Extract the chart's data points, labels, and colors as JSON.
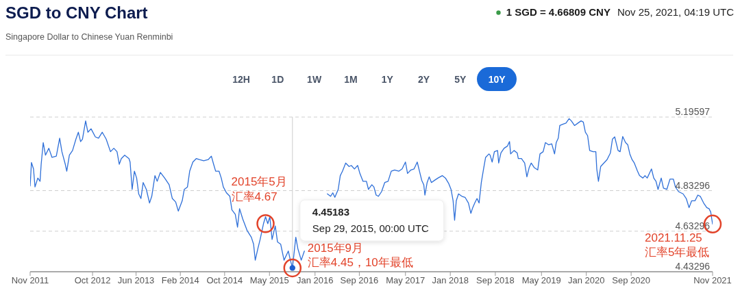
{
  "chart_data": {
    "type": "line",
    "title": "SGD to CNY Chart",
    "subtitle": "Singapore Dollar to Chinese Yuan Renminbi",
    "annotations": [
      "1 SGD = 4.66809 CNY",
      "Nov 25, 2021, 04:19 UTC",
      "12H",
      "1D",
      "1W",
      "1M",
      "1Y",
      "2Y",
      "5Y",
      "10Y",
      {
        "text": "2015年5月汇率4.67",
        "x": "2015-05-08",
        "y": 4.67
      },
      {
        "text": "2015年9月汇率4.45，10年最低",
        "x": "2015-09-29",
        "y": 4.45183
      },
      {
        "text": "2021.11.25汇率5年最低",
        "x": "2021-11-25",
        "y": 4.66809
      }
    ],
    "xlim": [
      "2011-11-25",
      "2021-11-25"
    ],
    "xticks": [
      {
        "value": "2011-11-25",
        "label": "Nov 2011"
      },
      {
        "value": "2012-10-24",
        "label": "Oct 2012"
      },
      {
        "value": "2013-06-14",
        "label": "Jun 2013"
      },
      {
        "value": "2014-02-06",
        "label": "Feb 2014"
      },
      {
        "value": "2014-10-01",
        "label": "Oct 2014"
      },
      {
        "value": "2015-05-29",
        "label": "May 2015"
      },
      {
        "value": "2016-01-28",
        "label": "Jan 2016"
      },
      {
        "value": "2016-09-21",
        "label": "Sep 2016"
      },
      {
        "value": "2017-05-26",
        "label": "May 2017"
      },
      {
        "value": "2018-01-21",
        "label": "Jan 2018"
      },
      {
        "value": "2018-09-19",
        "label": "Sep 2018"
      },
      {
        "value": "2019-05-24",
        "label": "May 2019"
      },
      {
        "value": "2020-01-19",
        "label": "Jan 2020"
      },
      {
        "value": "2020-09-15",
        "label": "Sep 2020"
      },
      {
        "value": "2021-11-25",
        "label": "Nov 2021"
      }
    ],
    "ylim": [
      4.43296,
      5.19597
    ],
    "yticks": [
      4.43296,
      4.63296,
      4.83296,
      5.19597
    ],
    "grid": "y",
    "ref_lines": [
      {
        "axis": "x",
        "value": "2015-09-29",
        "label": "4.45183\nSep 29, 2015, 00:00 UTC",
        "color": "#cccccc"
      }
    ],
    "series": [
      {
        "color": "#2e6fd8",
        "x": [
          "2011-11-25",
          "2011-12-02",
          "2011-12-13",
          "2011-12-21",
          "2012-01-05",
          "2012-01-17",
          "2012-01-23",
          "2012-02-03",
          "2012-02-15",
          "2012-03-04",
          "2012-03-21",
          "2012-04-13",
          "2012-05-01",
          "2012-05-13",
          "2012-05-31",
          "2012-06-08",
          "2012-06-22",
          "2012-07-09",
          "2012-07-27",
          "2012-08-09",
          "2012-08-21",
          "2012-08-31",
          "2012-09-17",
          "2012-09-29",
          "2012-10-16",
          "2012-11-08",
          "2012-11-25",
          "2012-12-15",
          "2013-01-05",
          "2013-01-28",
          "2013-02-15",
          "2013-03-04",
          "2013-03-16",
          "2013-03-27",
          "2013-04-14",
          "2013-05-07",
          "2013-05-13",
          "2013-05-24",
          "2013-06-05",
          "2013-06-17",
          "2013-06-28",
          "2013-07-10",
          "2013-07-22",
          "2013-08-08",
          "2013-08-25",
          "2013-09-06",
          "2013-09-23",
          "2013-10-05",
          "2013-10-22",
          "2013-11-14",
          "2013-12-08",
          "2013-12-25",
          "2014-01-12",
          "2014-01-26",
          "2014-02-16",
          "2014-02-27",
          "2014-03-16",
          "2014-03-28",
          "2014-04-14",
          "2014-05-02",
          "2014-05-19",
          "2014-06-11",
          "2014-07-05",
          "2014-07-22",
          "2014-08-03",
          "2014-08-14",
          "2014-09-01",
          "2014-09-13",
          "2014-09-24",
          "2014-10-11",
          "2014-10-29",
          "2014-11-09",
          "2014-11-27",
          "2014-12-09",
          "2014-12-20",
          "2015-01-06",
          "2015-01-29",
          "2015-02-21",
          "2015-03-05",
          "2015-03-14",
          "2015-03-28",
          "2015-04-09",
          "2015-04-27",
          "2015-05-08",
          "2015-05-20",
          "2015-05-31",
          "2015-06-12",
          "2015-06-29",
          "2015-07-11",
          "2015-07-28",
          "2015-08-15",
          "2015-09-07",
          "2015-09-18",
          "2015-09-29",
          "2015-10-17",
          "2015-10-28",
          "2015-11-15",
          "2015-12-02",
          "2016-01-31",
          "2016-04-03",
          "2016-04-20",
          "2016-05-02",
          "2016-05-13",
          "2016-05-31",
          "2016-06-11",
          "2016-06-23",
          "2016-07-10",
          "2016-07-28",
          "2016-08-09",
          "2016-08-26",
          "2016-09-12",
          "2016-09-24",
          "2016-10-11",
          "2016-10-29",
          "2016-11-09",
          "2016-11-27",
          "2016-12-08",
          "2016-12-20",
          "2017-01-01",
          "2017-01-18",
          "2017-02-04",
          "2017-02-22",
          "2017-03-11",
          "2017-03-29",
          "2017-04-21",
          "2017-05-08",
          "2017-05-26",
          "2017-06-06",
          "2017-06-24",
          "2017-07-11",
          "2017-07-28",
          "2017-08-09",
          "2017-08-21",
          "2017-09-01",
          "2017-09-07",
          "2017-09-19",
          "2017-09-30",
          "2017-10-12",
          "2017-10-29",
          "2017-11-16",
          "2017-12-09",
          "2017-12-26",
          "2018-01-13",
          "2018-01-25",
          "2018-02-05",
          "2018-02-13",
          "2018-02-22",
          "2018-03-06",
          "2018-03-24",
          "2018-04-10",
          "2018-04-28",
          "2018-05-11",
          "2018-05-21",
          "2018-06-01",
          "2018-06-13",
          "2018-06-24",
          "2018-07-06",
          "2018-07-18",
          "2018-07-29",
          "2018-08-16",
          "2018-08-22",
          "2018-09-02",
          "2018-09-14",
          "2018-10-01",
          "2018-10-07",
          "2018-10-19",
          "2018-11-05",
          "2018-11-23",
          "2018-12-04",
          "2018-12-10",
          "2018-12-28",
          "2019-01-14",
          "2019-01-20",
          "2019-02-06",
          "2019-02-23",
          "2019-03-07",
          "2019-03-19",
          "2019-03-30",
          "2019-04-16",
          "2019-05-04",
          "2019-05-16",
          "2019-06-02",
          "2019-06-14",
          "2019-07-01",
          "2019-07-18",
          "2019-08-02",
          "2019-08-11",
          "2019-08-22",
          "2019-08-30",
          "2019-09-14",
          "2019-10-02",
          "2019-10-19",
          "2019-10-31",
          "2019-11-17",
          "2019-12-05",
          "2019-12-22",
          "2020-01-03",
          "2020-01-14",
          "2020-01-26",
          "2020-02-06",
          "2020-02-24",
          "2020-03-10",
          "2020-03-15",
          "2020-03-24",
          "2020-04-05",
          "2020-04-22",
          "2020-05-09",
          "2020-05-27",
          "2020-06-07",
          "2020-06-19",
          "2020-07-07",
          "2020-07-18",
          "2020-08-01",
          "2020-08-16",
          "2020-08-28",
          "2020-09-08",
          "2020-09-20",
          "2020-10-02",
          "2020-10-19",
          "2020-10-30",
          "2020-11-17",
          "2020-11-28",
          "2020-12-10",
          "2021-01-02",
          "2021-01-14",
          "2021-01-26",
          "2021-02-06",
          "2021-02-23",
          "2021-03-07",
          "2021-03-25",
          "2021-04-11",
          "2021-04-29",
          "2021-05-10",
          "2021-05-27",
          "2021-06-20",
          "2021-07-07",
          "2021-07-22",
          "2021-08-05",
          "2021-08-23",
          "2021-09-07",
          "2021-09-20",
          "2021-10-08",
          "2021-10-25",
          "2021-11-06",
          "2021-11-15",
          "2021-11-25"
        ],
        "values": [
          4.856,
          4.972,
          4.94,
          4.851,
          4.895,
          4.879,
          4.963,
          5.07,
          5.008,
          5.042,
          4.997,
          5.003,
          5.092,
          5.025,
          4.963,
          4.929,
          5.008,
          5.031,
          5.087,
          5.121,
          5.075,
          5.087,
          5.177,
          5.121,
          5.138,
          5.098,
          5.092,
          5.121,
          5.087,
          5.025,
          5.042,
          5.025,
          4.963,
          4.991,
          5.008,
          4.991,
          4.974,
          4.839,
          4.929,
          4.895,
          4.817,
          4.794,
          4.873,
          4.839,
          4.772,
          4.805,
          4.907,
          4.879,
          4.923,
          4.895,
          4.862,
          4.794,
          4.777,
          4.732,
          4.783,
          4.839,
          4.851,
          4.929,
          4.974,
          4.991,
          4.986,
          4.98,
          4.986,
          5.003,
          4.963,
          4.929,
          4.929,
          4.895,
          4.851,
          4.822,
          4.805,
          4.738,
          4.716,
          4.653,
          4.744,
          4.693,
          4.637,
          4.603,
          4.569,
          4.49,
          4.547,
          4.592,
          4.67,
          4.704,
          4.67,
          4.704,
          4.592,
          4.659,
          4.58,
          4.569,
          4.49,
          4.535,
          4.49,
          4.45183,
          4.603,
          4.547,
          4.49,
          4.535,
          null,
          4.817,
          4.805,
          4.822,
          4.8,
          4.839,
          4.907,
          4.929,
          4.969,
          4.952,
          4.957,
          4.94,
          4.957,
          4.918,
          4.879,
          4.879,
          4.839,
          4.862,
          4.851,
          4.811,
          4.805,
          4.828,
          4.873,
          4.879,
          4.929,
          4.935,
          4.929,
          4.94,
          4.974,
          4.918,
          4.935,
          4.94,
          4.974,
          4.929,
          4.884,
          4.862,
          4.811,
          4.873,
          4.901,
          4.873,
          4.884,
          4.895,
          4.907,
          4.895,
          4.867,
          4.839,
          4.783,
          4.687,
          4.783,
          4.817,
          4.805,
          4.8,
          4.772,
          4.721,
          4.749,
          4.772,
          4.794,
          4.772,
          4.873,
          4.94,
          4.997,
          5.014,
          5.008,
          4.974,
          5.025,
          5.031,
          4.969,
          5.019,
          5.042,
          5.053,
          5.075,
          5.014,
          5.031,
          5.019,
          4.991,
          4.991,
          4.969,
          4.901,
          4.946,
          4.969,
          4.946,
          4.935,
          5.014,
          5.025,
          5.07,
          5.059,
          5.064,
          5.014,
          5.07,
          5.092,
          5.154,
          5.16,
          5.166,
          5.188,
          5.177,
          5.154,
          5.166,
          5.177,
          5.171,
          5.121,
          5.104,
          5.031,
          5.025,
          5.025,
          4.94,
          4.879,
          4.952,
          4.969,
          4.986,
          5.019,
          5.087,
          5.098,
          5.031,
          5.025,
          5.1,
          5.07,
          5.059,
          5.014,
          4.986,
          4.969,
          4.929,
          4.907,
          4.895,
          4.907,
          4.895,
          4.94,
          4.895,
          4.879,
          4.839,
          4.895,
          4.845,
          4.839,
          4.89,
          4.89,
          4.851,
          4.828,
          4.817,
          4.794,
          4.749,
          4.783,
          4.783,
          4.811,
          4.805,
          4.772,
          4.749,
          4.744,
          4.727,
          4.66809
        ]
      },
      {
        "type": "scatter",
        "color": "#1f5fd0",
        "marker": "circle",
        "x": [
          "2015-09-29"
        ],
        "values": [
          4.45183
        ]
      }
    ]
  }
}
